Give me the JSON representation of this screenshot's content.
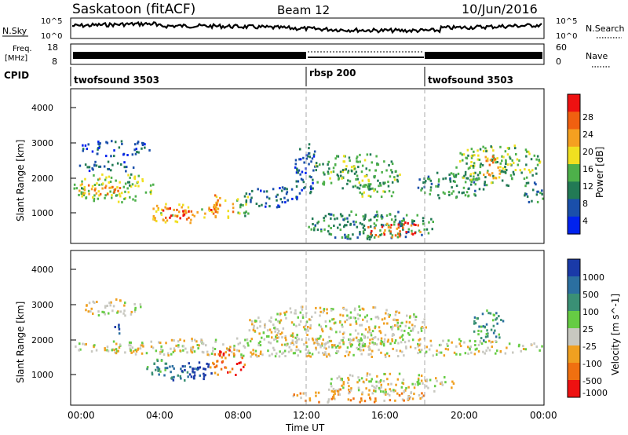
{
  "header": {
    "station": "Saskatoon (fitACF)",
    "beam": "Beam 12",
    "date": "10/Jun/2016"
  },
  "noise_panel": {
    "left_label": "N.Sky",
    "left_ticks": [
      "10^5",
      "10^0"
    ],
    "right_label": "N.Search",
    "right_ticks": [
      "10^5",
      "10^0"
    ]
  },
  "freq_panel": {
    "left_label_1": "Freq.",
    "left_label_2": "[MHz]",
    "left_ticks": [
      "18",
      "8"
    ],
    "right_label": "Nave",
    "right_ticks": [
      "60",
      "0"
    ]
  },
  "cpid": {
    "label": "CPID",
    "segments": [
      {
        "start_h": 0,
        "end_h": 12,
        "name": "twofsound 3503"
      },
      {
        "start_h": 12,
        "end_h": 18,
        "name": "rbsp 200"
      },
      {
        "start_h": 18,
        "end_h": 24,
        "name": "twofsound 3503"
      }
    ]
  },
  "x_axis": {
    "title": "Time UT",
    "ticks": [
      "00:00",
      "04:00",
      "08:00",
      "12:00",
      "16:00",
      "20:00",
      "00:00"
    ]
  },
  "chart_data": [
    {
      "type": "heatmap",
      "panel": "power",
      "title": "",
      "xlabel": "Time UT",
      "ylabel": "Slant Range [km]",
      "xlim": [
        0,
        24
      ],
      "ylim": [
        180,
        4500
      ],
      "yticks": [
        "1000",
        "2000",
        "3000",
        "4000"
      ],
      "colorbar": {
        "label": "Power [dB]",
        "ticks": [
          "4",
          "8",
          "12",
          "16",
          "20",
          "24",
          "28"
        ],
        "colors": [
          "#0022ee",
          "#1a4faa",
          "#227a55",
          "#4db04a",
          "#f0e020",
          "#f5a020",
          "#f06010",
          "#ee1111"
        ]
      },
      "blobs": [
        {
          "t0": 0.1,
          "t1": 4.2,
          "r0": 1350,
          "r1": 2150,
          "level": 3.5
        },
        {
          "t0": 0.2,
          "t1": 2.5,
          "r0": 1550,
          "r1": 1850,
          "level": 5.5
        },
        {
          "t0": 0.3,
          "t1": 3.5,
          "r0": 2200,
          "r1": 2500,
          "level": 1.5
        },
        {
          "t0": 0.5,
          "t1": 4.0,
          "r0": 2650,
          "r1": 3100,
          "level": 0.8
        },
        {
          "t0": 3.8,
          "t1": 6.8,
          "r0": 750,
          "r1": 1350,
          "level": 4.5
        },
        {
          "t0": 4.5,
          "t1": 6.2,
          "r0": 850,
          "r1": 1200,
          "level": 7.0
        },
        {
          "t0": 6.8,
          "t1": 8.2,
          "r0": 850,
          "r1": 1550,
          "level": 5.0
        },
        {
          "t0": 7.0,
          "t1": 7.6,
          "r0": 1000,
          "r1": 1300,
          "level": 6.5
        },
        {
          "t0": 8.3,
          "t1": 9.2,
          "r0": 950,
          "r1": 1650,
          "level": 3.0
        },
        {
          "t0": 9.0,
          "t1": 11.5,
          "r0": 1200,
          "r1": 1800,
          "level": 1.2
        },
        {
          "t0": 11.3,
          "t1": 12.5,
          "r0": 1500,
          "r1": 3000,
          "level": 1.2
        },
        {
          "t0": 12.2,
          "t1": 16.8,
          "r0": 1700,
          "r1": 2700,
          "level": 2.8
        },
        {
          "t0": 14.5,
          "t1": 16.5,
          "r0": 1450,
          "r1": 1900,
          "level": 3.2
        },
        {
          "t0": 12.0,
          "t1": 18.5,
          "r0": 300,
          "r1": 1100,
          "level": 2.2
        },
        {
          "t0": 15.0,
          "t1": 17.8,
          "r0": 350,
          "r1": 800,
          "level": 6.0
        },
        {
          "t0": 17.5,
          "t1": 21.0,
          "r0": 1450,
          "r1": 2200,
          "level": 2.3
        },
        {
          "t0": 19.5,
          "t1": 23.8,
          "r0": 1800,
          "r1": 3000,
          "level": 3.0
        },
        {
          "t0": 20.8,
          "t1": 21.8,
          "r0": 2000,
          "r1": 2700,
          "level": 5.0
        },
        {
          "t0": 23.0,
          "t1": 24.0,
          "r0": 1300,
          "r1": 2000,
          "level": 1.8
        }
      ]
    },
    {
      "type": "heatmap",
      "panel": "velocity",
      "title": "",
      "xlabel": "Time UT",
      "ylabel": "Slant Range [km]",
      "xlim": [
        0,
        24
      ],
      "ylim": [
        180,
        4500
      ],
      "yticks": [
        "1000",
        "2000",
        "3000",
        "4000"
      ],
      "colorbar": {
        "label": "Velocity [m s^-1]",
        "ticks": [
          "1000",
          "500",
          "100",
          "25",
          "-25",
          "-100",
          "-500",
          "-1000"
        ],
        "colors": [
          "#1a3aa8",
          "#2b6fa0",
          "#3a9075",
          "#66cc44",
          "#c8c8c0",
          "#f0a020",
          "#f07010",
          "#ee1111"
        ]
      },
      "blobs": [
        {
          "t0": 0.1,
          "t1": 24.0,
          "r0": 1550,
          "r1": 2100,
          "level": 4
        },
        {
          "t0": 0.5,
          "t1": 3.5,
          "r0": 2700,
          "r1": 3200,
          "level": 4
        },
        {
          "t0": 9.0,
          "t1": 18.0,
          "r0": 1800,
          "r1": 3000,
          "level": 4
        },
        {
          "t0": 4.0,
          "t1": 6.5,
          "r0": 850,
          "r1": 1300,
          "level": 1
        },
        {
          "t0": 3.5,
          "t1": 5.0,
          "r0": 1100,
          "r1": 1500,
          "level": 2
        },
        {
          "t0": 5.5,
          "t1": 7.2,
          "r0": 900,
          "r1": 1400,
          "level": 0
        },
        {
          "t0": 7.0,
          "t1": 8.8,
          "r0": 1000,
          "r1": 1800,
          "level": 6
        },
        {
          "t0": 2.0,
          "t1": 2.6,
          "r0": 2200,
          "r1": 2500,
          "level": 0
        },
        {
          "t0": 11.0,
          "t1": 18.0,
          "r0": 250,
          "r1": 650,
          "level": 5
        },
        {
          "t0": 20.3,
          "t1": 22.0,
          "r0": 2000,
          "r1": 2900,
          "level": 2
        },
        {
          "t0": 13.0,
          "t1": 19.5,
          "r0": 500,
          "r1": 1100,
          "level": 4
        }
      ]
    }
  ]
}
